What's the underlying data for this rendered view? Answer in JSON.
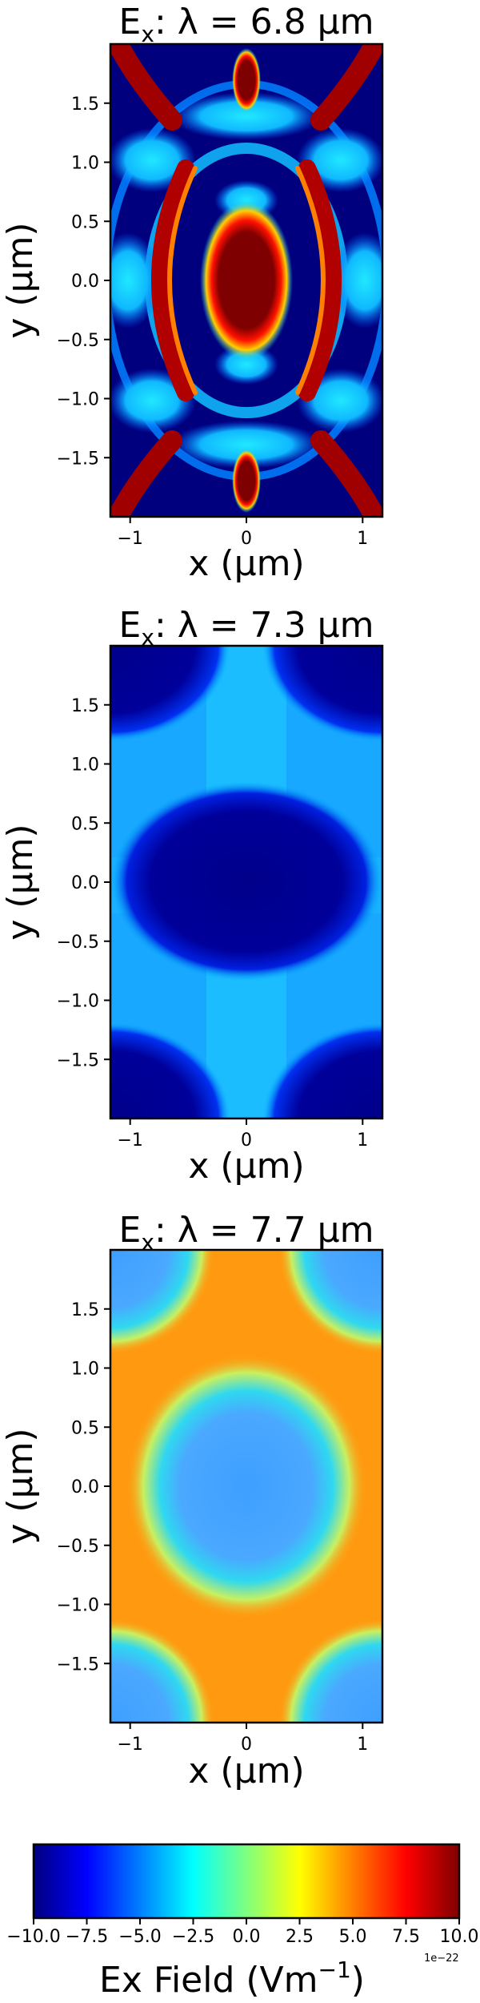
{
  "chart_data": [
    {
      "type": "heatmap",
      "title_main": "E",
      "title_sub": "x",
      "title_rest": ": λ = 6.8 μm",
      "xlabel": "x (μm)",
      "ylabel": "y (μm)",
      "xlim": [
        -1.17,
        1.17
      ],
      "ylim": [
        -2.0,
        2.0
      ],
      "xticks": [
        -1,
        0,
        1
      ],
      "xticklabels": [
        "−1",
        "0",
        "1"
      ],
      "yticks": [
        -1.5,
        -1.0,
        -0.5,
        0.0,
        0.5,
        1.0,
        1.5
      ],
      "yticklabels": [
        "−1.5",
        "−1.0",
        "−0.5",
        "0.0",
        "0.5",
        "1.0",
        "1.5"
      ],
      "field_pattern": "high-order resonance: saturated red core at center, red crescents near the unit-cell ring and corners, cyan lattice on dark-blue background"
    },
    {
      "type": "heatmap",
      "title_main": "E",
      "title_sub": "x",
      "title_rest": ": λ = 7.3 μm",
      "xlabel": "x (μm)",
      "ylabel": "y (μm)",
      "xlim": [
        -1.17,
        1.17
      ],
      "ylim": [
        -2.0,
        2.0
      ],
      "xticks": [
        -1,
        0,
        1
      ],
      "xticklabels": [
        "−1",
        "0",
        "1"
      ],
      "yticks": [
        -1.5,
        -1.0,
        -0.5,
        0.0,
        0.5,
        1.0,
        1.5
      ],
      "yticklabels": [
        "−1.5",
        "−1.0",
        "−0.5",
        "0.0",
        "0.5",
        "1.0",
        "1.5"
      ],
      "field_pattern": "dark-blue ellipse at center and dark-blue corners on a light-blue/cyan background"
    },
    {
      "type": "heatmap",
      "title_main": "E",
      "title_sub": "x",
      "title_rest": ": λ = 7.7 μm",
      "xlabel": "x (μm)",
      "ylabel": "y (μm)",
      "xlim": [
        -1.17,
        1.17
      ],
      "ylim": [
        -2.0,
        2.0
      ],
      "xticks": [
        -1,
        0,
        1
      ],
      "xticklabels": [
        "−1",
        "0",
        "1"
      ],
      "yticks": [
        -1.5,
        -1.0,
        -0.5,
        0.0,
        0.5,
        1.0,
        1.5
      ],
      "yticklabels": [
        "−1.5",
        "−1.0",
        "−0.5",
        "0.0",
        "0.5",
        "1.0",
        "1.5"
      ],
      "field_pattern": "light-blue disc at center and light-blue corner quarter circles on an orange background, separated by cyan/yellow rings"
    }
  ],
  "colorbar": {
    "colormap": "jet",
    "colors": [
      "#00007f",
      "#0000ff",
      "#007fff",
      "#00ffff",
      "#7fff7f",
      "#ffff00",
      "#ff7f00",
      "#ff0000",
      "#7f0000"
    ],
    "range": [
      -10.0,
      10.0
    ],
    "ticks": [
      -10.0,
      -7.5,
      -5.0,
      -2.5,
      0.0,
      2.5,
      5.0,
      7.5,
      10.0
    ],
    "ticklabels": [
      "−10.0",
      "−7.5",
      "−5.0",
      "−2.5",
      "0.0",
      "2.5",
      "5.0",
      "7.5",
      "10.0"
    ],
    "offset_label": "1e−22",
    "label_main": "Ex  Field (Vm",
    "label_sup": "−1",
    "label_end": ")"
  }
}
